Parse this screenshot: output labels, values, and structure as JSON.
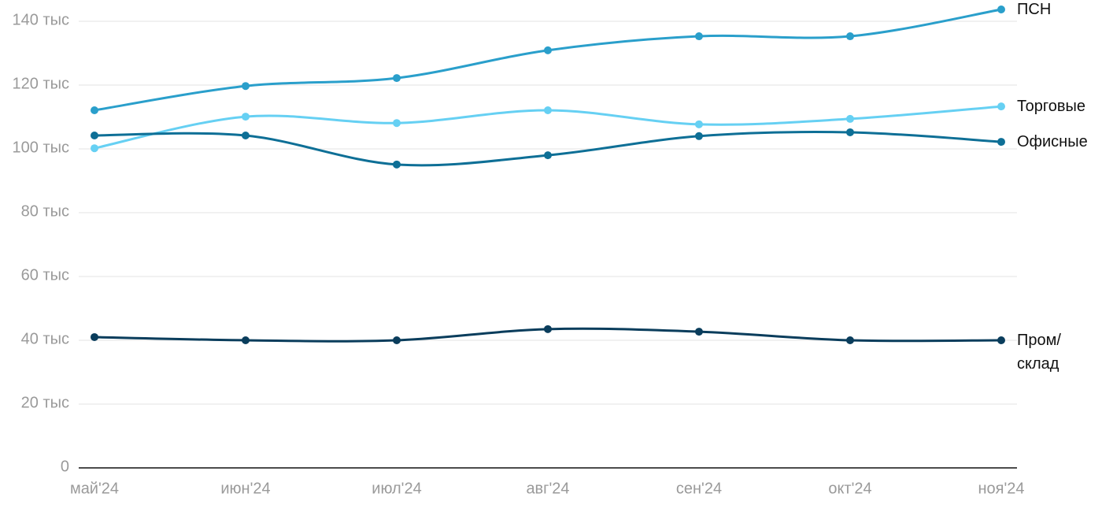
{
  "chart_data": {
    "type": "line",
    "categories": [
      "май'24",
      "июн'24",
      "июл'24",
      "авг'24",
      "сен'24",
      "окт'24",
      "ноя'24"
    ],
    "series": [
      {
        "name": "ПСН",
        "color": "#2a9fcb",
        "values": [
          112100,
          119700,
          122200,
          130900,
          135300,
          135300,
          143700
        ]
      },
      {
        "name": "Торговые",
        "color": "#66d0f3",
        "values": [
          100200,
          110100,
          108100,
          112100,
          107700,
          109400,
          113300
        ]
      },
      {
        "name": "Офисные",
        "color": "#0e6f96",
        "values": [
          104200,
          104200,
          95100,
          98000,
          104000,
          105200,
          102200
        ]
      },
      {
        "name": "Пром/\nсклад",
        "color": "#0a3d5c",
        "values": [
          41000,
          40000,
          40000,
          43500,
          42700,
          40000,
          40000
        ]
      }
    ],
    "ylim": [
      0,
      140000
    ],
    "yticks": [
      0,
      {
        "value": 20000,
        "label": "20 тыс"
      },
      {
        "value": 40000,
        "label": "40 тыс"
      },
      {
        "value": 60000,
        "label": "60 тыс"
      },
      {
        "value": 80000,
        "label": "80 тыс"
      },
      {
        "value": 100000,
        "label": "100 тыс"
      },
      {
        "value": 120000,
        "label": "120 тыс"
      },
      {
        "value": 140000,
        "label": "140 тыс"
      }
    ],
    "grid": true
  }
}
